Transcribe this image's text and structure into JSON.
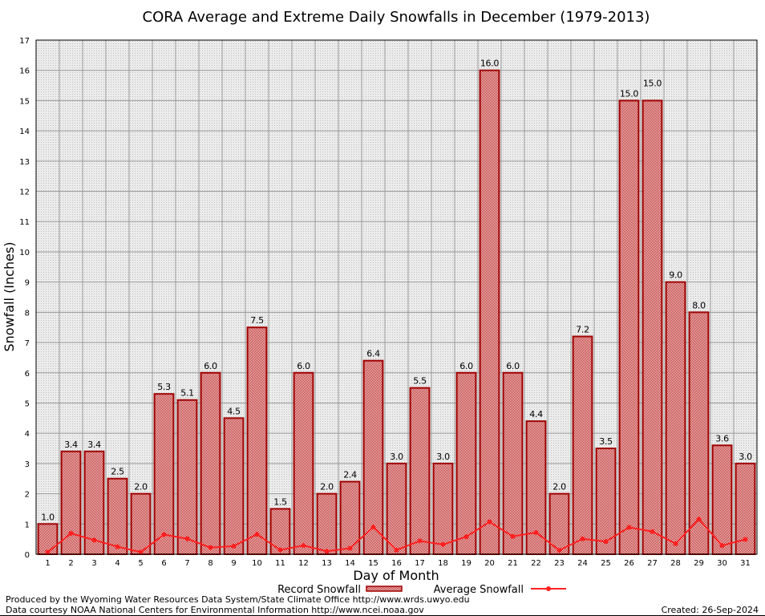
{
  "chart_data": {
    "type": "bar",
    "title": "CORA Average and Extreme Daily Snowfalls in December (1979-2013)",
    "xlabel": "Day of Month",
    "ylabel": "Snowfall (Inches)",
    "ylim": [
      0,
      17
    ],
    "yticks": [
      0,
      1,
      2,
      3,
      4,
      5,
      6,
      7,
      8,
      9,
      10,
      11,
      12,
      13,
      14,
      15,
      16,
      17
    ],
    "grid": true,
    "legend_position": "bottom",
    "categories": [
      "1",
      "2",
      "3",
      "4",
      "5",
      "6",
      "7",
      "8",
      "9",
      "10",
      "11",
      "12",
      "13",
      "14",
      "15",
      "16",
      "17",
      "18",
      "19",
      "20",
      "21",
      "22",
      "23",
      "24",
      "25",
      "26",
      "27",
      "28",
      "29",
      "30",
      "31"
    ],
    "series": [
      {
        "name": "Record Snowfall",
        "type": "bar",
        "color": "#a00000",
        "values": [
          1.0,
          3.4,
          3.4,
          2.5,
          2.0,
          5.3,
          5.1,
          6.0,
          4.5,
          7.5,
          1.5,
          6.0,
          2.0,
          2.4,
          6.4,
          3.0,
          5.5,
          3.0,
          6.0,
          16.0,
          6.0,
          4.4,
          2.0,
          7.2,
          3.5,
          15.0,
          15.0,
          9.0,
          8.0,
          3.6,
          3.0
        ],
        "labels": [
          "1.0",
          "3.4",
          "3.4",
          "2.5",
          "2.0",
          "5.3",
          "5.1",
          "6.0",
          "4.5",
          "7.5",
          "1.5",
          "6.0",
          "2.0",
          "2.4",
          "6.4",
          "3.0",
          "5.5",
          "3.0",
          "6.0",
          "16.0",
          "6.0",
          "4.4",
          "2.0",
          "7.2",
          "3.5",
          "15.0",
          "15.0",
          "9.0",
          "8.0",
          "3.6",
          "3.0"
        ]
      },
      {
        "name": "Average Snowfall",
        "type": "line",
        "color": "#ff2020",
        "values": [
          0.07,
          0.69,
          0.47,
          0.25,
          0.07,
          0.65,
          0.51,
          0.22,
          0.27,
          0.66,
          0.14,
          0.29,
          0.1,
          0.2,
          0.9,
          0.14,
          0.44,
          0.32,
          0.58,
          1.07,
          0.59,
          0.72,
          0.13,
          0.51,
          0.42,
          0.89,
          0.75,
          0.35,
          1.16,
          0.29,
          0.49
        ]
      }
    ]
  },
  "footer": {
    "produced_by": "Produced by the Wyoming Water Resources Data System/State Climate Office http://www.wrds.uwyo.edu",
    "courtesy": "Data courtesy NOAA National Centers for Environmental Information http://www.ncei.noaa.gov",
    "created": "Created: 26-Sep-2024"
  }
}
